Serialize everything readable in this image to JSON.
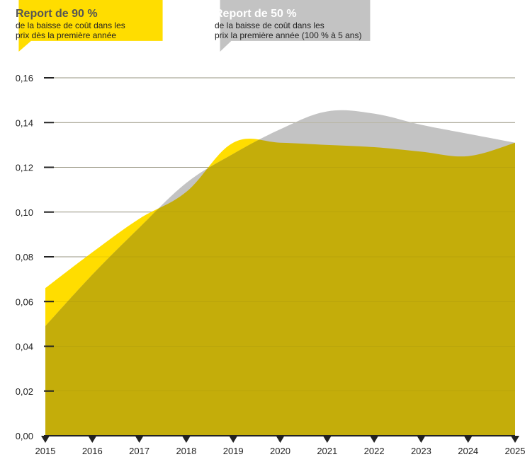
{
  "legend": {
    "yellow": {
      "title": "Report de 90 %",
      "line1": "de la baisse de coût dans les",
      "line2": "prix dès la première année",
      "color": "#ffdd00"
    },
    "gray": {
      "title": "Report de 50 %",
      "line1": "de la baisse de coût dans les",
      "line2": "prix la première année (100 % à 5 ans)",
      "color": "#c3c3c3"
    }
  },
  "chart_data": {
    "type": "area",
    "x": [
      2015,
      2016,
      2017,
      2018,
      2019,
      2020,
      2021,
      2022,
      2023,
      2024,
      2025
    ],
    "x_ticks": [
      "2015",
      "2016",
      "2017",
      "2018",
      "2019",
      "2020",
      "2021",
      "2022",
      "2023",
      "2024",
      "2025"
    ],
    "y_ticks": [
      "0,00",
      "0,02",
      "0,04",
      "0,06",
      "0,08",
      "0,10",
      "0,12",
      "0,14",
      "0,16"
    ],
    "ylim": [
      0,
      0.16
    ],
    "grid": true,
    "overlap_color": "#c4ad0a",
    "series": [
      {
        "name": "Report de 90 %",
        "color": "#ffdd00",
        "values": [
          0.066,
          0.082,
          0.097,
          0.109,
          0.131,
          0.131,
          0.13,
          0.129,
          0.127,
          0.125,
          0.131
        ]
      },
      {
        "name": "Report de 50 %",
        "color": "#c3c3c3",
        "values": [
          0.049,
          0.072,
          0.093,
          0.113,
          0.126,
          0.137,
          0.145,
          0.144,
          0.139,
          0.135,
          0.131
        ]
      }
    ]
  }
}
